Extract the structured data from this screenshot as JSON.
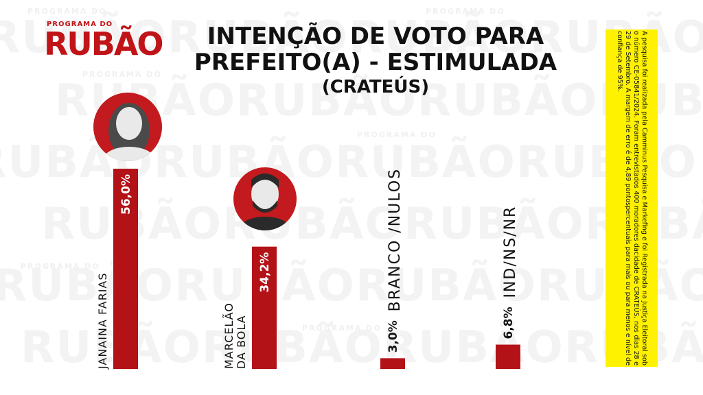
{
  "watermark": {
    "big_text": "RUBÃORUBÃORUBÃORUBÃO",
    "small_text": "PROGRAMA DO"
  },
  "logo": {
    "top": "PROGRAMA DO",
    "main": "RUBÃO"
  },
  "title_line1": "INTENÇÃO DE VOTO PARA",
  "title_line2": "PREFEITO(A) - ESTIMULADA",
  "subtitle": "(CRATEÚS)",
  "note": "A pesquisa foi realizada pela Camminus Pesquisa e Markefing e foi Registrada na Justiça Eleitoral sob o número CE-05841/2024. Foram entrevistados 400 moradores dacidade de CRATEÚS, nos dias 28 e 29 de Setembro. A margem de erro é de 4,89 pontospercentuais para mais ou para menos e nível de confiança de 95%.",
  "colors": {
    "bar": "#b31217",
    "accent": "#c01418",
    "note_bg": "#fff200"
  },
  "chart_data": {
    "type": "bar",
    "orientation": "vertical",
    "categories": [
      "JANAINA FARIAS",
      "MARCELÃO DA BOLA",
      "BRANCO /NULOS",
      "IND/NS/NR"
    ],
    "category_lines": [
      [
        "JANAINA FARIAS"
      ],
      [
        "MARCELÃO",
        "DA BOLA"
      ],
      [
        "BRANCO /NULOS"
      ],
      [
        "IND/NS/NR"
      ]
    ],
    "values": [
      56.0,
      34.2,
      3.0,
      6.8
    ],
    "value_labels": [
      "56,0%",
      "34,2%",
      "3,0%",
      "6,8%"
    ],
    "photos": [
      "woman-portrait",
      "man-portrait",
      null,
      null
    ],
    "ylim": [
      0,
      60
    ],
    "title": "INTENÇÃO DE VOTO PARA PREFEITO(A) - ESTIMULADA",
    "subtitle": "(CRATEÚS)",
    "grid": false,
    "legend": "none"
  }
}
